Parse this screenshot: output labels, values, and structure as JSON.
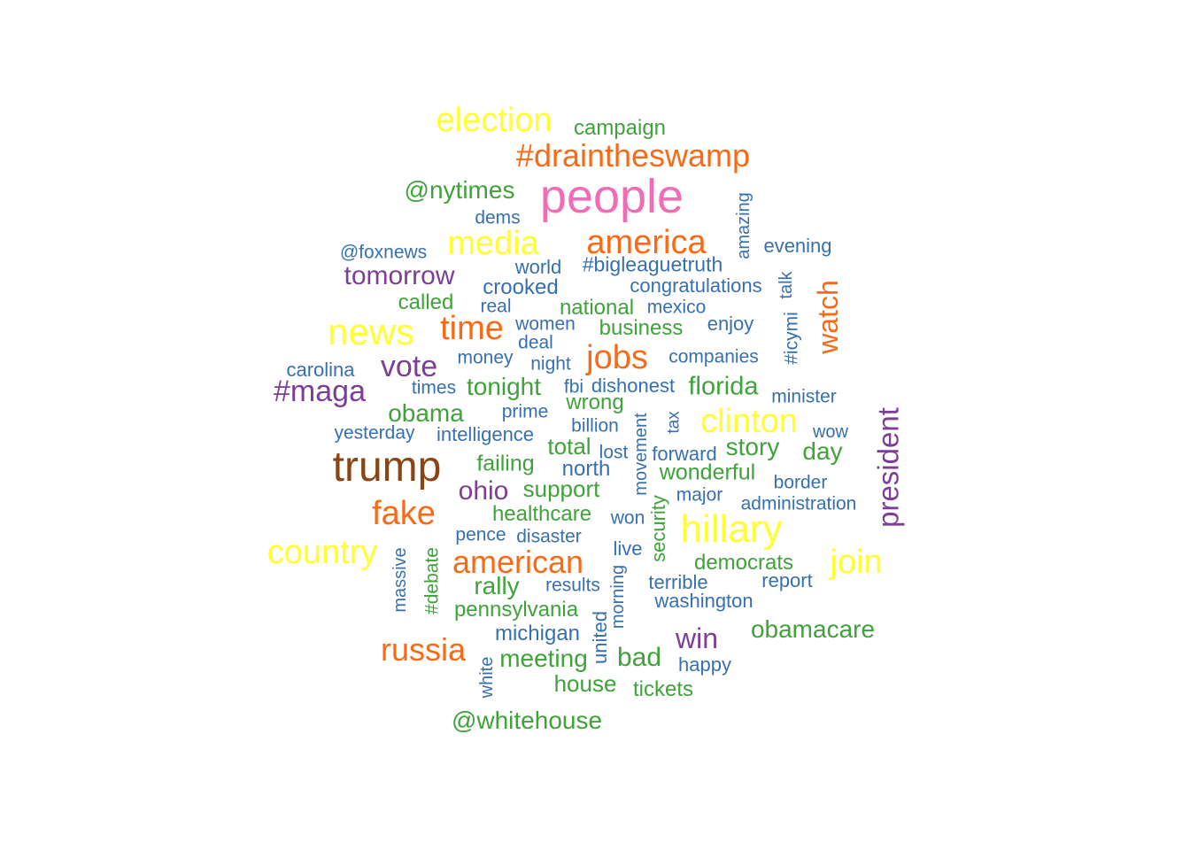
{
  "palette": {
    "brown": "#8B4513",
    "pink": "#F06CB4",
    "orange": "#F96A16",
    "yellow": "#FFFF33",
    "purple": "#7E3E96",
    "green": "#3FA23A",
    "blue": "#3670B0"
  },
  "words": [
    {
      "text": "trump",
      "color": "brown"
    },
    {
      "text": "people",
      "color": "pink"
    },
    {
      "text": "election",
      "color": "yellow"
    },
    {
      "text": "campaign",
      "color": "green"
    },
    {
      "text": "#draintheswamp",
      "color": "orange"
    },
    {
      "text": "@nytimes",
      "color": "green"
    },
    {
      "text": "dems",
      "color": "blue"
    },
    {
      "text": "amazing",
      "color": "blue"
    },
    {
      "text": "media",
      "color": "yellow"
    },
    {
      "text": "america",
      "color": "orange"
    },
    {
      "text": "evening",
      "color": "blue"
    },
    {
      "text": "@foxnews",
      "color": "blue"
    },
    {
      "text": "world",
      "color": "blue"
    },
    {
      "text": "#bigleaguetruth",
      "color": "blue"
    },
    {
      "text": "tomorrow",
      "color": "purple"
    },
    {
      "text": "crooked",
      "color": "blue"
    },
    {
      "text": "congratulations",
      "color": "blue"
    },
    {
      "text": "talk",
      "color": "blue"
    },
    {
      "text": "watch",
      "color": "orange"
    },
    {
      "text": "called",
      "color": "green"
    },
    {
      "text": "real",
      "color": "blue"
    },
    {
      "text": "national",
      "color": "green"
    },
    {
      "text": "mexico",
      "color": "blue"
    },
    {
      "text": "news",
      "color": "yellow"
    },
    {
      "text": "time",
      "color": "orange"
    },
    {
      "text": "women",
      "color": "blue"
    },
    {
      "text": "business",
      "color": "green"
    },
    {
      "text": "enjoy",
      "color": "blue"
    },
    {
      "text": "#icymi",
      "color": "blue"
    },
    {
      "text": "deal",
      "color": "blue"
    },
    {
      "text": "jobs",
      "color": "orange"
    },
    {
      "text": "carolina",
      "color": "blue"
    },
    {
      "text": "vote",
      "color": "purple"
    },
    {
      "text": "money",
      "color": "blue"
    },
    {
      "text": "night",
      "color": "blue"
    },
    {
      "text": "companies",
      "color": "blue"
    },
    {
      "text": "#maga",
      "color": "purple"
    },
    {
      "text": "times",
      "color": "blue"
    },
    {
      "text": "tonight",
      "color": "green"
    },
    {
      "text": "fbi",
      "color": "blue"
    },
    {
      "text": "dishonest",
      "color": "blue"
    },
    {
      "text": "florida",
      "color": "green"
    },
    {
      "text": "minister",
      "color": "blue"
    },
    {
      "text": "president",
      "color": "purple"
    },
    {
      "text": "wrong",
      "color": "green"
    },
    {
      "text": "obama",
      "color": "green"
    },
    {
      "text": "prime",
      "color": "blue"
    },
    {
      "text": "clinton",
      "color": "yellow"
    },
    {
      "text": "tax",
      "color": "blue"
    },
    {
      "text": "billion",
      "color": "blue"
    },
    {
      "text": "movement",
      "color": "blue"
    },
    {
      "text": "yesterday",
      "color": "blue"
    },
    {
      "text": "intelligence",
      "color": "blue"
    },
    {
      "text": "wow",
      "color": "blue"
    },
    {
      "text": "total",
      "color": "green"
    },
    {
      "text": "story",
      "color": "green"
    },
    {
      "text": "day",
      "color": "green"
    },
    {
      "text": "lost",
      "color": "blue"
    },
    {
      "text": "forward",
      "color": "blue"
    },
    {
      "text": "failing",
      "color": "green"
    },
    {
      "text": "north",
      "color": "blue"
    },
    {
      "text": "wonderful",
      "color": "green"
    },
    {
      "text": "border",
      "color": "blue"
    },
    {
      "text": "ohio",
      "color": "purple"
    },
    {
      "text": "support",
      "color": "green"
    },
    {
      "text": "major",
      "color": "blue"
    },
    {
      "text": "security",
      "color": "green"
    },
    {
      "text": "administration",
      "color": "blue"
    },
    {
      "text": "fake",
      "color": "orange"
    },
    {
      "text": "healthcare",
      "color": "green"
    },
    {
      "text": "won",
      "color": "blue"
    },
    {
      "text": "hillary",
      "color": "yellow"
    },
    {
      "text": "pence",
      "color": "blue"
    },
    {
      "text": "disaster",
      "color": "blue"
    },
    {
      "text": "country",
      "color": "yellow"
    },
    {
      "text": "massive",
      "color": "blue"
    },
    {
      "text": "live",
      "color": "blue"
    },
    {
      "text": "#debate",
      "color": "green"
    },
    {
      "text": "american",
      "color": "orange"
    },
    {
      "text": "democrats",
      "color": "green"
    },
    {
      "text": "join",
      "color": "yellow"
    },
    {
      "text": "morning",
      "color": "blue"
    },
    {
      "text": "rally",
      "color": "green"
    },
    {
      "text": "results",
      "color": "blue"
    },
    {
      "text": "terrible",
      "color": "blue"
    },
    {
      "text": "report",
      "color": "blue"
    },
    {
      "text": "washington",
      "color": "blue"
    },
    {
      "text": "pennsylvania",
      "color": "green"
    },
    {
      "text": "united",
      "color": "blue"
    },
    {
      "text": "obamacare",
      "color": "green"
    },
    {
      "text": "michigan",
      "color": "blue"
    },
    {
      "text": "win",
      "color": "purple"
    },
    {
      "text": "russia",
      "color": "orange"
    },
    {
      "text": "white",
      "color": "blue"
    },
    {
      "text": "meeting",
      "color": "green"
    },
    {
      "text": "bad",
      "color": "green"
    },
    {
      "text": "happy",
      "color": "blue"
    },
    {
      "text": "house",
      "color": "green"
    },
    {
      "text": "tickets",
      "color": "green"
    },
    {
      "text": "@whitehouse",
      "color": "green"
    }
  ]
}
